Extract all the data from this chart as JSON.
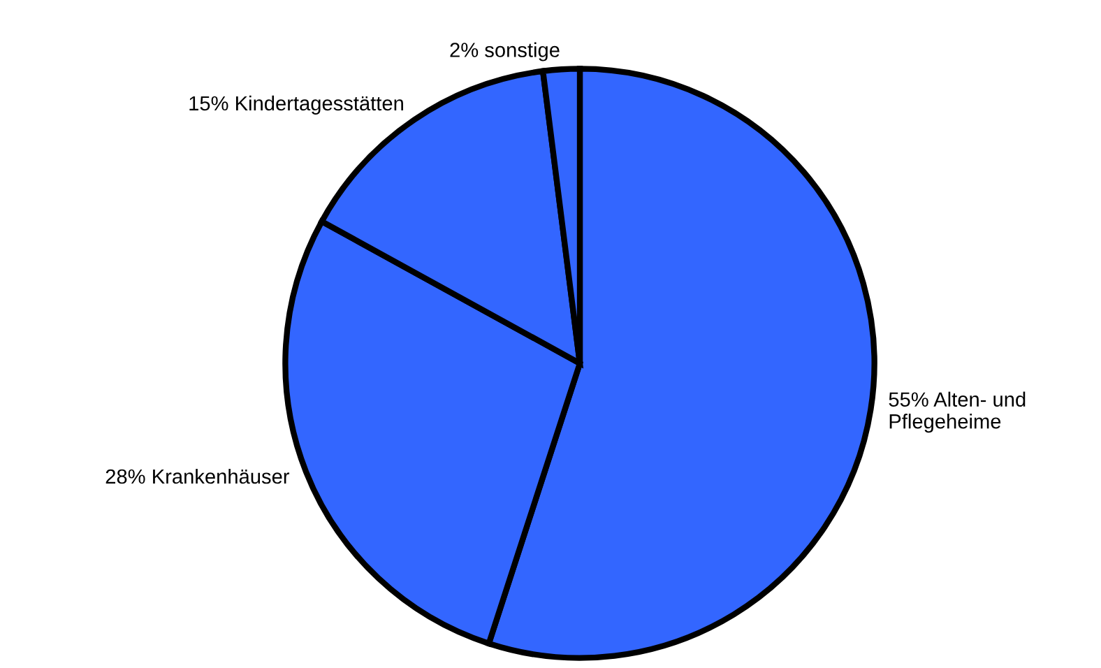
{
  "chart_data": {
    "type": "pie",
    "categories": [
      "55% Alten- und\nPflegeheime",
      "28% Krankenhäuser",
      "15% Kindertagesstätten",
      "2% sonstige"
    ],
    "values": [
      55,
      28,
      15,
      2
    ],
    "colors": [
      "#3366ff",
      "#3366ff",
      "#3366ff",
      "#3366ff"
    ]
  }
}
